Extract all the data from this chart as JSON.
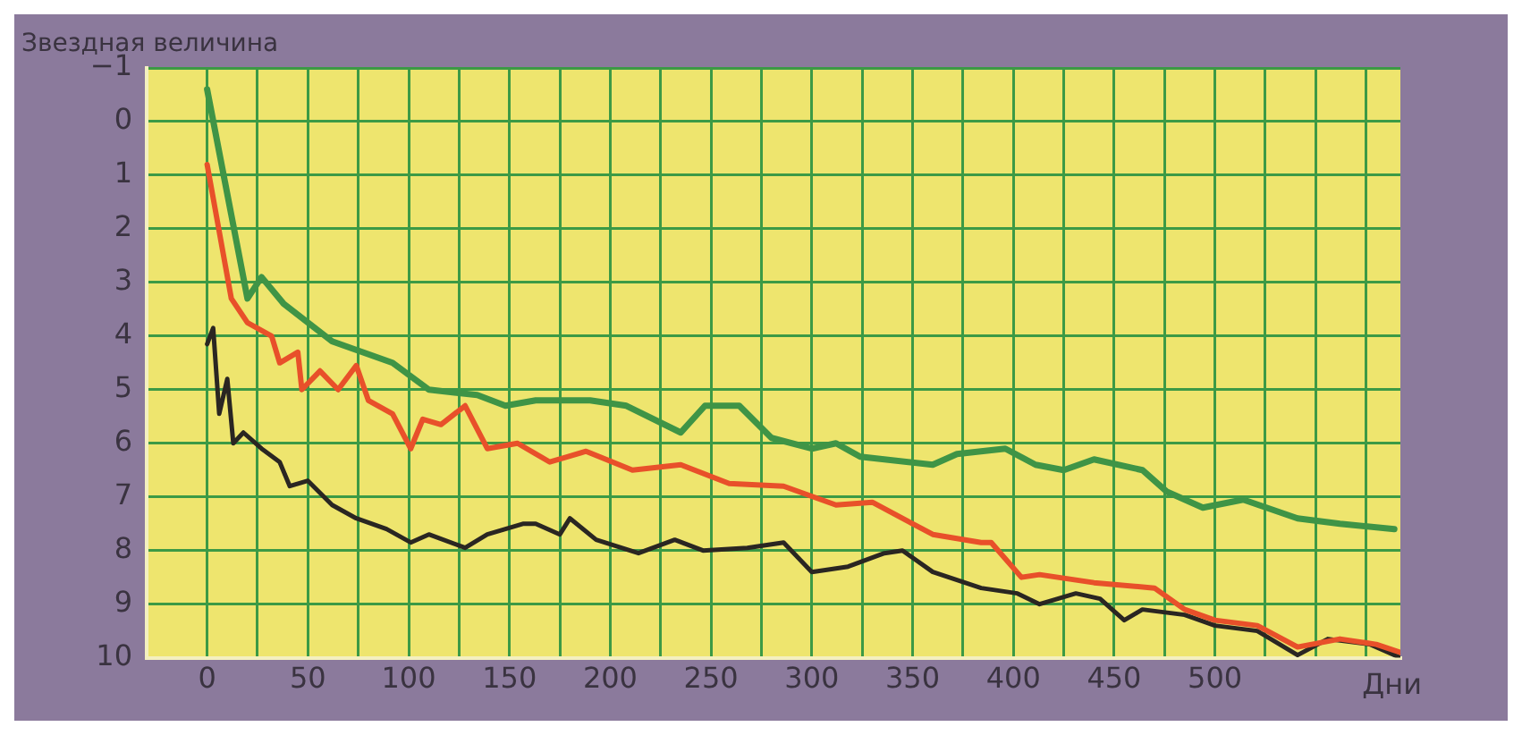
{
  "chart_data": {
    "type": "line",
    "ylabel": "Звездная величина",
    "xlabel": "Дни",
    "xlim": [
      -30,
      592
    ],
    "ylim": [
      10,
      -1
    ],
    "xticks": [
      0,
      {
        "value": 25,
        "label": null
      },
      50,
      {
        "value": 75,
        "label": null
      },
      100,
      {
        "value": 125,
        "label": null
      },
      150,
      {
        "value": 175,
        "label": null
      },
      200,
      {
        "value": 225,
        "label": null
      },
      250,
      {
        "value": 275,
        "label": null
      },
      300,
      {
        "value": 325,
        "label": null
      },
      350,
      {
        "value": 375,
        "label": null
      },
      400,
      {
        "value": 425,
        "label": null
      },
      450,
      {
        "value": 475,
        "label": null
      },
      500,
      {
        "value": 525,
        "label": null
      },
      {
        "value": 550,
        "label": null
      },
      {
        "value": 575,
        "label": null
      }
    ],
    "yticks": [
      -1,
      0,
      1,
      2,
      3,
      4,
      5,
      6,
      7,
      8,
      9,
      10
    ],
    "grid": true,
    "legend": false,
    "marker": "none",
    "line_style": "solid",
    "series": [
      {
        "color": "#3f9446",
        "x": [
          0,
          20,
          27,
          38,
          50,
          62,
          77,
          92,
          110,
          134,
          148,
          163,
          190,
          208,
          235,
          247,
          264,
          280,
          300,
          312,
          324,
          360,
          372,
          396,
          411,
          425,
          440,
          464,
          476,
          494,
          514,
          541,
          562,
          589
        ],
        "values": [
          -0.6,
          3.3,
          2.9,
          3.4,
          3.75,
          4.1,
          4.3,
          4.5,
          5.0,
          5.1,
          5.3,
          5.2,
          5.2,
          5.3,
          5.8,
          5.3,
          5.3,
          5.9,
          6.1,
          6.0,
          6.25,
          6.4,
          6.2,
          6.1,
          6.4,
          6.5,
          6.3,
          6.5,
          6.9,
          7.2,
          7.05,
          7.4,
          7.5,
          7.6
        ]
      },
      {
        "color": "#e8502a",
        "x": [
          0,
          12,
          20,
          32,
          36,
          45,
          47,
          56,
          65,
          74,
          80,
          92,
          101,
          107,
          116,
          128,
          139,
          154,
          170,
          188,
          211,
          235,
          259,
          286,
          312,
          330,
          360,
          384,
          389,
          404,
          413,
          440,
          470,
          485,
          500,
          521,
          541,
          562,
          580,
          592
        ],
        "values": [
          0.8,
          3.3,
          3.75,
          4.0,
          4.5,
          4.3,
          5.0,
          4.65,
          5.0,
          4.55,
          5.2,
          5.45,
          6.1,
          5.55,
          5.65,
          5.3,
          6.1,
          6.0,
          6.35,
          6.15,
          6.5,
          6.4,
          6.75,
          6.8,
          7.15,
          7.1,
          7.7,
          7.85,
          7.85,
          8.5,
          8.45,
          8.6,
          8.7,
          9.1,
          9.3,
          9.4,
          9.8,
          9.65,
          9.75,
          9.9
        ]
      },
      {
        "color": "#2a2622",
        "x": [
          0,
          3,
          6,
          10,
          13,
          18,
          27,
          36,
          41,
          50,
          62,
          74,
          89,
          101,
          110,
          128,
          139,
          157,
          163,
          175,
          180,
          193,
          214,
          232,
          246,
          268,
          286,
          300,
          318,
          336,
          345,
          360,
          384,
          402,
          413,
          431,
          443,
          455,
          464,
          485,
          500,
          521,
          541,
          556,
          577,
          592
        ],
        "values": [
          4.15,
          3.85,
          5.45,
          4.8,
          6.0,
          5.8,
          6.1,
          6.35,
          6.8,
          6.7,
          7.15,
          7.4,
          7.6,
          7.85,
          7.7,
          7.95,
          7.7,
          7.5,
          7.5,
          7.7,
          7.4,
          7.8,
          8.05,
          7.8,
          8.0,
          7.95,
          7.85,
          8.4,
          8.3,
          8.05,
          8.0,
          8.4,
          8.7,
          8.8,
          9.0,
          8.8,
          8.9,
          9.3,
          9.1,
          9.2,
          9.4,
          9.5,
          9.95,
          9.65,
          9.75,
          10
        ]
      }
    ]
  }
}
